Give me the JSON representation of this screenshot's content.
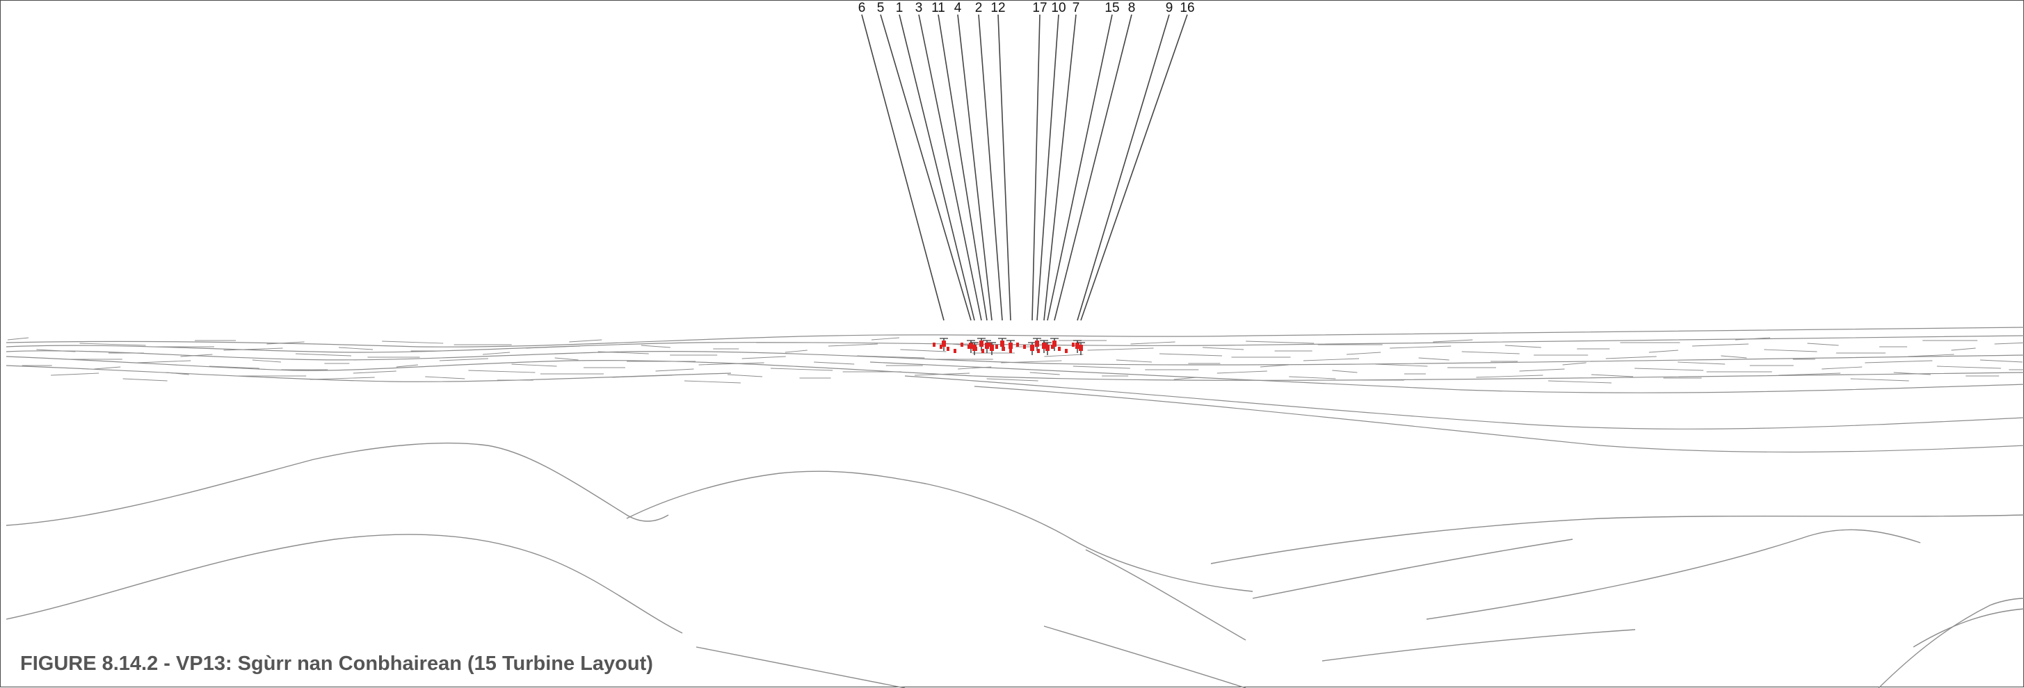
{
  "figure": {
    "caption": "FIGURE 8.14.2 - VP13: Sgùrr nan Conbhairean (15 Turbine Layout)"
  },
  "turbines": {
    "labels": [
      "6",
      "5",
      "1",
      "3",
      "11",
      "4",
      "2",
      "12",
      "17",
      "10",
      "7",
      "15",
      "8",
      "9",
      "16"
    ],
    "marker_color": "#e02020",
    "line_color": "#444444"
  },
  "terrain": {
    "line_color": "#8c8c8c"
  }
}
